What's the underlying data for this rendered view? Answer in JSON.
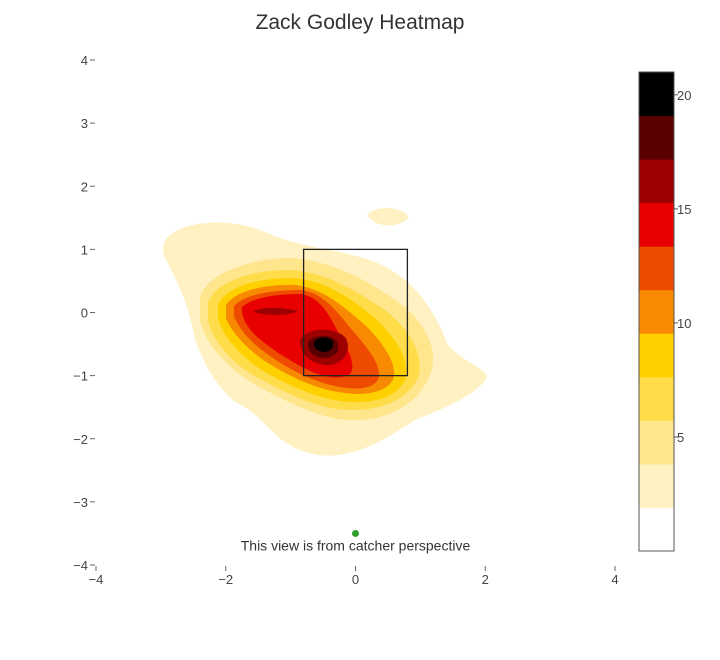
{
  "chart_data": {
    "type": "heatmap",
    "title": "Zack Godley Heatmap",
    "xlabel": "",
    "ylabel": "",
    "xlim": [
      -4,
      4
    ],
    "ylim": [
      -4,
      4
    ],
    "x_ticks": [
      -4,
      -2,
      0,
      2,
      4
    ],
    "y_ticks": [
      4,
      3,
      2,
      1,
      0,
      -1,
      -2,
      -3,
      -4
    ],
    "x_tick_labels": [
      "−4",
      "−2",
      "0",
      "2",
      "4"
    ],
    "y_tick_labels": [
      "4",
      "3",
      "2",
      "1",
      "0",
      "−1",
      "−2",
      "−3",
      "−4"
    ],
    "grid": false,
    "strike_zone": {
      "x": [
        -0.8,
        0.8
      ],
      "y": [
        -1.0,
        1.0
      ]
    },
    "catcher_marker": {
      "x": 0.0,
      "y": -3.5,
      "color": "#2ca02c"
    },
    "annotation": "This view is from catcher perspective",
    "colorbar": {
      "range": [
        0,
        21
      ],
      "ticks": [
        5,
        10,
        15,
        20
      ],
      "tick_labels": [
        "5",
        "10",
        "15",
        "20"
      ],
      "colors": [
        "#ffffff",
        "#fff1c2",
        "#ffe58c",
        "#ffdc4a",
        "#ffd000",
        "#f78a00",
        "#ee4a00",
        "#e80000",
        "#9c0000",
        "#5a0000",
        "#000000"
      ]
    },
    "density_peaks": [
      {
        "x": -0.5,
        "y": -0.5,
        "value": 21
      },
      {
        "x": -1.5,
        "y": 0.0,
        "value": 16
      },
      {
        "x": 0.5,
        "y": 1.5,
        "value": 2
      }
    ]
  }
}
